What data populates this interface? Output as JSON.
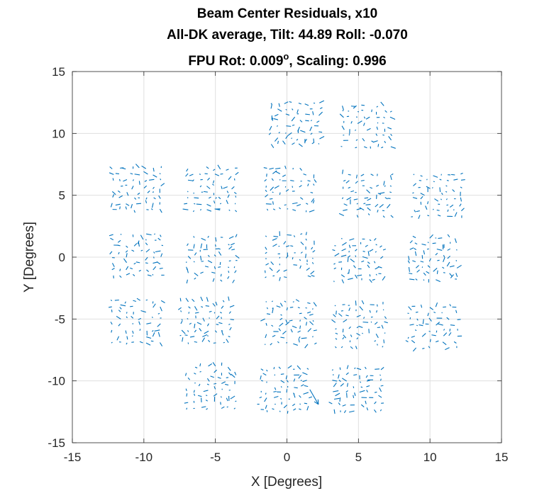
{
  "chart_data": {
    "type": "scatter",
    "subtype": "quiver",
    "title": [
      "Beam Center Residuals, x10",
      "All-DK average, Tilt: 44.89  Roll: -0.070",
      "FPU Rot: 0.009",
      ", Scaling: 0.996"
    ],
    "title_superscript": "o",
    "xlabel": "X [Degrees]",
    "ylabel": "Y [Degrees]",
    "xlim": [
      -15,
      15
    ],
    "ylim": [
      -15,
      15
    ],
    "xticks": [
      -15,
      -10,
      -5,
      0,
      5,
      10,
      15
    ],
    "yticks": [
      -15,
      -10,
      -5,
      0,
      5,
      10,
      15
    ],
    "xtick_labels": [
      "-15",
      "-10",
      "-5",
      "0",
      "5",
      "10",
      "15"
    ],
    "ytick_labels": [
      "-15",
      "-10",
      "-5",
      "0",
      "5",
      "10",
      "15"
    ],
    "grid": true,
    "color": "#0072bd",
    "tile_centers": [
      [
        -10.5,
        5.5
      ],
      [
        -5.3,
        5.5
      ],
      [
        0.2,
        5.5
      ],
      [
        5.6,
        5.0
      ],
      [
        10.5,
        5.0
      ],
      [
        -10.5,
        0.2
      ],
      [
        -5.3,
        -0.1
      ],
      [
        0.2,
        0.1
      ],
      [
        5.0,
        -0.2
      ],
      [
        10.2,
        -0.1
      ],
      [
        -10.5,
        -5.2
      ],
      [
        -5.7,
        -5.2
      ],
      [
        0.2,
        -5.3
      ],
      [
        5.1,
        -5.5
      ],
      [
        10.2,
        -5.7
      ],
      [
        -5.3,
        -10.5
      ],
      [
        -0.2,
        -10.7
      ],
      [
        4.9,
        -10.7
      ],
      [
        0.6,
        10.8
      ],
      [
        5.6,
        10.6
      ]
    ],
    "tile_half_width_deg": 1.9,
    "tile_half_height_deg": 1.9,
    "grid_per_tile": 8,
    "note_arrow": {
      "x": 1.6,
      "y": -10.7,
      "dx": 0.6,
      "dy": -1.2
    }
  }
}
